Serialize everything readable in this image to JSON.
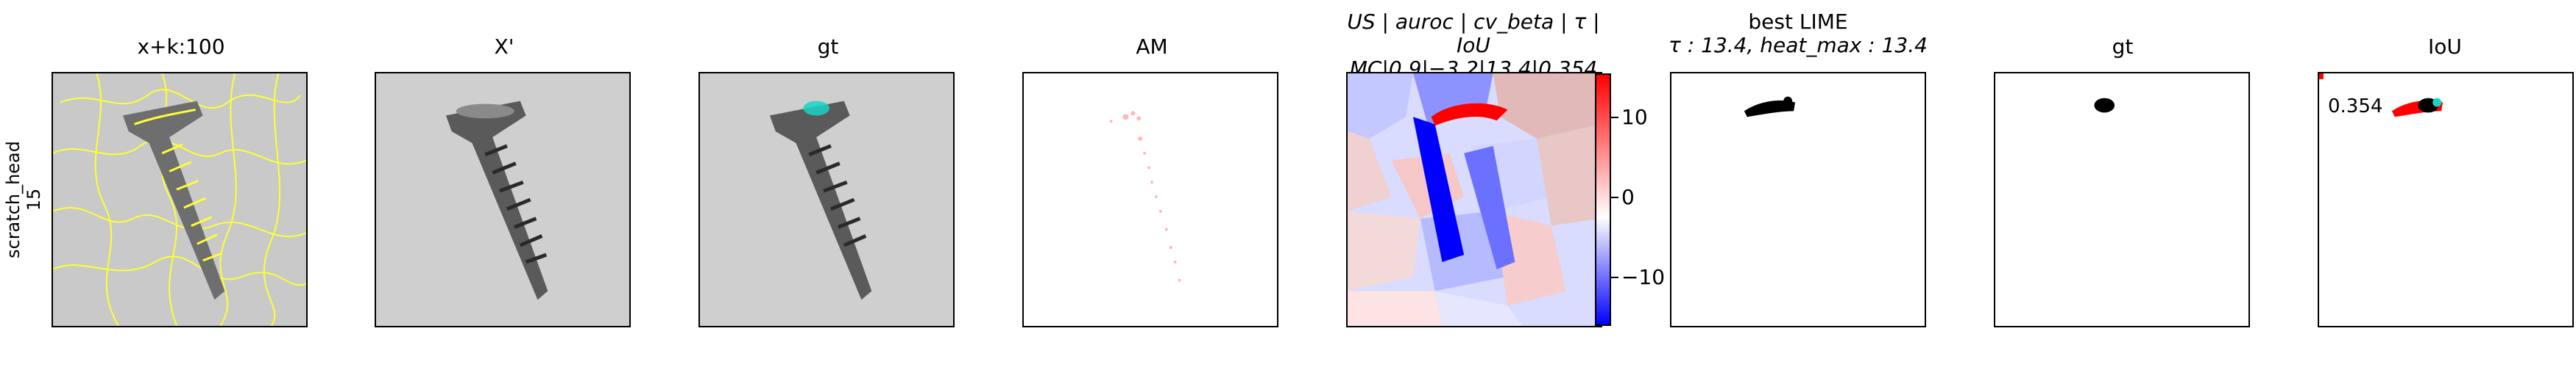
{
  "row_label": {
    "line1": "scratch_head",
    "line2": "15"
  },
  "panels": [
    {
      "title": "x+k:100"
    },
    {
      "title": "X'"
    },
    {
      "title": "gt"
    },
    {
      "title": "AM"
    },
    {
      "title_line1": "US | auroc | cv_beta | τ | IoU",
      "title_line2": "MC|0.9|−3.2|13.4|0.354"
    },
    {
      "title_line1": "best LIME",
      "title_line2": "τ : 13.4, heat_max : 13.4"
    },
    {
      "title": "gt"
    },
    {
      "title": "IoU",
      "value_label": "0.354"
    }
  ],
  "colorbar": {
    "ticks": [
      "10",
      "0",
      "−10"
    ],
    "colors": {
      "max": "#ff0000",
      "mid": "#ffffff",
      "min": "#0000ff"
    }
  },
  "colors": {
    "superpixel_edges": "#ffff33",
    "gt_region": "#19d3c5"
  }
}
